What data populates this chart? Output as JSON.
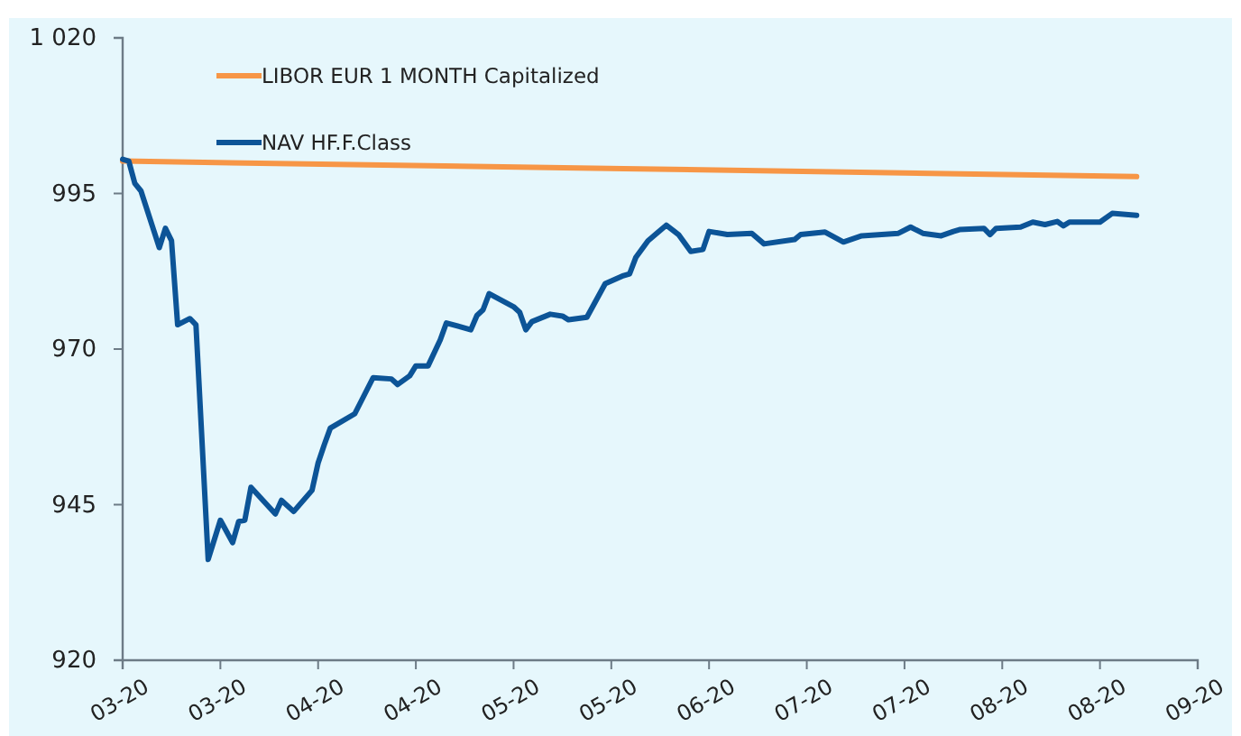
{
  "chart_data": {
    "type": "line",
    "xlim": [
      "2020-03-11",
      "2020-09-03"
    ],
    "xticks": [
      {
        "value": "2020-03-11",
        "label": "03-20"
      },
      {
        "value": "2020-03-27",
        "label": "03-20"
      },
      {
        "value": "2020-04-12",
        "label": "04-20"
      },
      {
        "value": "2020-04-28",
        "label": "04-20"
      },
      {
        "value": "2020-05-14",
        "label": "05-20"
      },
      {
        "value": "2020-05-30",
        "label": "05-20"
      },
      {
        "value": "2020-06-15",
        "label": "06-20"
      },
      {
        "value": "2020-07-01",
        "label": "07-20"
      },
      {
        "value": "2020-07-17",
        "label": "07-20"
      },
      {
        "value": "2020-08-02",
        "label": "08-20"
      },
      {
        "value": "2020-08-18",
        "label": "08-20"
      },
      {
        "value": "2020-09-03",
        "label": "09-20"
      }
    ],
    "ylim": [
      920,
      1020
    ],
    "yticks": [
      920,
      945,
      970,
      995,
      {
        "value": 1020,
        "label": "1 020"
      }
    ],
    "grid": false,
    "legend": "top left",
    "line_style": "solid",
    "series": [
      {
        "name": "LIBOR EUR 1 MONTH Capitalized",
        "color": "#f79646",
        "x": [
          "2020-03-11",
          "2020-06-01",
          "2020-08-24"
        ],
        "values": [
          1000.2,
          999.0,
          997.7
        ]
      },
      {
        "name": "NAV HF.F.Class",
        "color": "#0c5497",
        "x": [
          "2020-03-11",
          "2020-03-12",
          "2020-03-13",
          "2020-03-14",
          "2020-03-17",
          "2020-03-18",
          "2020-03-19",
          "2020-03-20",
          "2020-03-22",
          "2020-03-23",
          "2020-03-25",
          "2020-03-27",
          "2020-03-29",
          "2020-03-30",
          "2020-03-31",
          "2020-04-01",
          "2020-04-05",
          "2020-04-06",
          "2020-04-08",
          "2020-04-11",
          "2020-04-12",
          "2020-04-13",
          "2020-04-14",
          "2020-04-18",
          "2020-04-21",
          "2020-04-24",
          "2020-04-25",
          "2020-04-27",
          "2020-04-28",
          "2020-04-30",
          "2020-05-02",
          "2020-05-03",
          "2020-05-07",
          "2020-05-08",
          "2020-05-09",
          "2020-05-10",
          "2020-05-14",
          "2020-05-15",
          "2020-05-16",
          "2020-05-17",
          "2020-05-20",
          "2020-05-22",
          "2020-05-23",
          "2020-05-26",
          "2020-05-29",
          "2020-06-01",
          "2020-06-02",
          "2020-06-03",
          "2020-06-05",
          "2020-06-08",
          "2020-06-10",
          "2020-06-12",
          "2020-06-14",
          "2020-06-15",
          "2020-06-18",
          "2020-06-22",
          "2020-06-24",
          "2020-06-29",
          "2020-06-30",
          "2020-07-04",
          "2020-07-07",
          "2020-07-10",
          "2020-07-16",
          "2020-07-18",
          "2020-07-20",
          "2020-07-23",
          "2020-07-25",
          "2020-07-26",
          "2020-07-30",
          "2020-07-31",
          "2020-08-01",
          "2020-08-05",
          "2020-08-07",
          "2020-08-09",
          "2020-08-11",
          "2020-08-12",
          "2020-08-13",
          "2020-08-18",
          "2020-08-20",
          "2020-08-24"
        ],
        "values": [
          1000.5,
          1000.2,
          996.6,
          995.4,
          986.3,
          989.4,
          987.4,
          973.9,
          974.9,
          973.9,
          936.2,
          942.5,
          938.9,
          942.3,
          942.5,
          947.8,
          943.5,
          945.7,
          943.9,
          947.3,
          951.7,
          954.6,
          957.3,
          959.6,
          965.4,
          965.2,
          964.3,
          965.7,
          967.3,
          967.3,
          971.5,
          974.2,
          973.1,
          975.4,
          976.3,
          978.9,
          976.8,
          975.9,
          973.1,
          974.4,
          975.6,
          975.3,
          974.7,
          975.1,
          980.5,
          981.8,
          982.1,
          984.7,
          987.4,
          989.9,
          988.4,
          985.7,
          986.0,
          988.9,
          988.4,
          988.6,
          986.9,
          987.6,
          988.4,
          988.8,
          987.2,
          988.2,
          988.6,
          989.6,
          988.6,
          988.2,
          988.9,
          989.2,
          989.4,
          988.4,
          989.4,
          989.6,
          990.4,
          990.0,
          990.5,
          989.8,
          990.4,
          990.4,
          991.8,
          991.5
        ]
      }
    ]
  }
}
